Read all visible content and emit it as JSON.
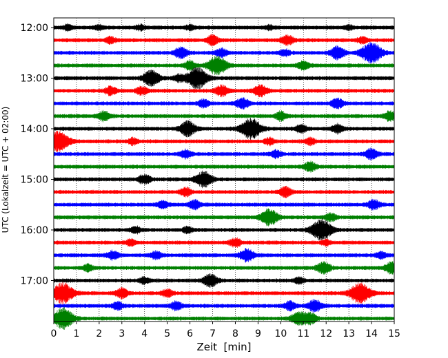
{
  "chart_data": {
    "type": "line",
    "title": "",
    "xlabel": "Zeit  [min]",
    "ylabel": "UTC (Lokalzeit = UTC + 02:00)",
    "xlim": [
      0,
      15
    ],
    "x_ticks": [
      0,
      1,
      2,
      3,
      4,
      5,
      6,
      7,
      8,
      9,
      10,
      11,
      12,
      13,
      14,
      15
    ],
    "y_tick_labels": [
      "12:00",
      "13:00",
      "14:00",
      "15:00",
      "16:00",
      "17:00"
    ],
    "grid": "vertical dotted lines at each minute",
    "legend": "none",
    "trace_colors": [
      "#000000",
      "#ff0000",
      "#0000ff",
      "#008000"
    ],
    "traces": [
      {
        "start": "12:00",
        "color": "#000000",
        "events": [
          [
            0.6,
            0.25
          ],
          [
            2.0,
            0.2
          ],
          [
            3.8,
            0.25
          ],
          [
            6.0,
            0.25
          ],
          [
            9.5,
            0.2
          ],
          [
            13.0,
            0.2
          ]
        ]
      },
      {
        "start": "12:15",
        "color": "#ff0000",
        "events": [
          [
            2.5,
            0.3
          ],
          [
            7.0,
            0.45
          ],
          [
            10.3,
            0.45
          ],
          [
            13.6,
            0.3
          ]
        ]
      },
      {
        "start": "12:30",
        "color": "#0000ff",
        "events": [
          [
            5.6,
            0.5
          ],
          [
            7.4,
            0.4
          ],
          [
            10.2,
            0.3
          ],
          [
            12.5,
            0.6
          ],
          [
            14.0,
            1.0
          ]
        ]
      },
      {
        "start": "12:45",
        "color": "#008000",
        "events": [
          [
            6.0,
            0.4
          ],
          [
            7.2,
            0.9
          ],
          [
            11.0,
            0.4
          ]
        ]
      },
      {
        "start": "13:00",
        "color": "#000000",
        "events": [
          [
            4.3,
            0.75
          ],
          [
            6.3,
            1.0
          ],
          [
            5.5,
            0.3
          ]
        ]
      },
      {
        "start": "13:15",
        "color": "#ff0000",
        "events": [
          [
            2.5,
            0.4
          ],
          [
            3.9,
            0.4
          ],
          [
            7.4,
            0.5
          ],
          [
            9.1,
            0.55
          ]
        ]
      },
      {
        "start": "13:30",
        "color": "#0000ff",
        "events": [
          [
            6.6,
            0.35
          ],
          [
            8.3,
            0.5
          ],
          [
            12.5,
            0.45
          ]
        ]
      },
      {
        "start": "13:45",
        "color": "#008000",
        "events": [
          [
            2.2,
            0.45
          ],
          [
            10.0,
            0.4
          ],
          [
            14.8,
            0.45
          ]
        ]
      },
      {
        "start": "14:00",
        "color": "#000000",
        "events": [
          [
            5.9,
            0.7
          ],
          [
            8.7,
            1.0
          ],
          [
            10.9,
            0.4
          ],
          [
            12.5,
            0.4
          ]
        ]
      },
      {
        "start": "14:15",
        "color": "#ff0000",
        "events": [
          [
            0.2,
            1.0
          ],
          [
            3.5,
            0.3
          ],
          [
            9.5,
            0.3
          ],
          [
            11.3,
            0.3
          ]
        ]
      },
      {
        "start": "14:30",
        "color": "#0000ff",
        "events": [
          [
            5.8,
            0.4
          ],
          [
            9.8,
            0.35
          ],
          [
            14.0,
            0.5
          ]
        ]
      },
      {
        "start": "14:45",
        "color": "#008000",
        "events": [
          [
            11.3,
            0.45
          ]
        ]
      },
      {
        "start": "15:00",
        "color": "#000000",
        "events": [
          [
            4.0,
            0.45
          ],
          [
            6.6,
            0.75
          ]
        ]
      },
      {
        "start": "15:15",
        "color": "#ff0000",
        "events": [
          [
            5.8,
            0.4
          ],
          [
            10.2,
            0.45
          ]
        ]
      },
      {
        "start": "15:30",
        "color": "#0000ff",
        "events": [
          [
            4.8,
            0.35
          ],
          [
            6.2,
            0.4
          ],
          [
            14.1,
            0.45
          ]
        ]
      },
      {
        "start": "15:45",
        "color": "#008000",
        "events": [
          [
            9.5,
            0.8
          ],
          [
            12.2,
            0.35
          ]
        ]
      },
      {
        "start": "16:00",
        "color": "#000000",
        "events": [
          [
            3.6,
            0.3
          ],
          [
            5.9,
            0.3
          ],
          [
            11.8,
            1.0
          ]
        ]
      },
      {
        "start": "16:15",
        "color": "#ff0000",
        "events": [
          [
            3.4,
            0.3
          ],
          [
            8.0,
            0.4
          ],
          [
            12.0,
            0.25
          ]
        ]
      },
      {
        "start": "16:30",
        "color": "#0000ff",
        "events": [
          [
            2.6,
            0.4
          ],
          [
            4.5,
            0.35
          ],
          [
            8.5,
            0.6
          ],
          [
            14.4,
            0.3
          ]
        ]
      },
      {
        "start": "16:45",
        "color": "#008000",
        "events": [
          [
            1.5,
            0.3
          ],
          [
            11.9,
            0.55
          ],
          [
            14.9,
            0.55
          ]
        ]
      },
      {
        "start": "17:00",
        "color": "#000000",
        "events": [
          [
            4.0,
            0.3
          ],
          [
            6.9,
            0.6
          ],
          [
            10.8,
            0.3
          ]
        ]
      },
      {
        "start": "17:15",
        "color": "#ff0000",
        "events": [
          [
            0.4,
            1.0
          ],
          [
            3.0,
            0.45
          ],
          [
            5.0,
            0.35
          ],
          [
            13.5,
            1.0
          ]
        ]
      },
      {
        "start": "17:30",
        "color": "#0000ff",
        "events": [
          [
            2.8,
            0.35
          ],
          [
            5.4,
            0.4
          ],
          [
            10.4,
            0.4
          ],
          [
            11.5,
            0.55
          ]
        ]
      },
      {
        "start": "17:45",
        "color": "#008000",
        "events": [
          [
            0.4,
            1.0
          ],
          [
            10.8,
            0.6
          ],
          [
            11.3,
            0.5
          ]
        ]
      }
    ]
  }
}
